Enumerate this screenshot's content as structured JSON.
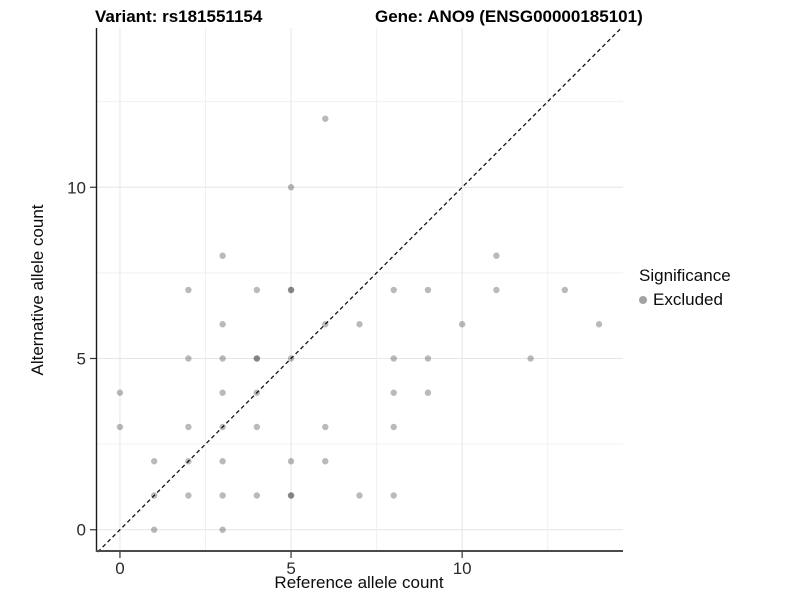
{
  "chart_data": {
    "type": "scatter",
    "title_left": "Variant: rs181551154",
    "title_right": "Gene: ANO9 (ENSG00000185101)",
    "xlabel": "Reference allele count",
    "ylabel": "Alternative allele count",
    "x_ticks": [
      0,
      5,
      10
    ],
    "y_ticks": [
      0,
      5,
      10
    ],
    "xlim": [
      -0.7,
      14.7
    ],
    "ylim": [
      -0.65,
      14.65
    ],
    "grid": {
      "major_step": 5,
      "minor_step": 2.5,
      "major_color": "#e6e6e6",
      "minor_color": "#f0f0f0"
    },
    "identity_line": {
      "style": "dashed",
      "slope": 1,
      "intercept": 0,
      "color": "#141414"
    },
    "legend": {
      "title": "Significance",
      "items": [
        {
          "label": "Excluded",
          "color": "#a2a2a2"
        }
      ],
      "position": "right"
    },
    "point_color": "rgba(0,0,0,0.27)",
    "series": [
      {
        "name": "Excluded",
        "points": [
          [
            0,
            3
          ],
          [
            0,
            4
          ],
          [
            1,
            0
          ],
          [
            1,
            1
          ],
          [
            1,
            2
          ],
          [
            2,
            1
          ],
          [
            2,
            2
          ],
          [
            2,
            3
          ],
          [
            2,
            5
          ],
          [
            2,
            7
          ],
          [
            3,
            0
          ],
          [
            3,
            1
          ],
          [
            3,
            2
          ],
          [
            3,
            3
          ],
          [
            3,
            4
          ],
          [
            3,
            5
          ],
          [
            3,
            6
          ],
          [
            3,
            8
          ],
          [
            4,
            1
          ],
          [
            4,
            3
          ],
          [
            4,
            4
          ],
          [
            4,
            5
          ],
          [
            4,
            5
          ],
          [
            4,
            7
          ],
          [
            5,
            1
          ],
          [
            5,
            1
          ],
          [
            5,
            2
          ],
          [
            5,
            5
          ],
          [
            5,
            7
          ],
          [
            5,
            7
          ],
          [
            5,
            10
          ],
          [
            6,
            2
          ],
          [
            6,
            3
          ],
          [
            6,
            6
          ],
          [
            6,
            12
          ],
          [
            7,
            1
          ],
          [
            7,
            6
          ],
          [
            8,
            1
          ],
          [
            8,
            3
          ],
          [
            8,
            4
          ],
          [
            8,
            5
          ],
          [
            8,
            7
          ],
          [
            9,
            4
          ],
          [
            9,
            5
          ],
          [
            9,
            7
          ],
          [
            10,
            6
          ],
          [
            11,
            7
          ],
          [
            11,
            8
          ],
          [
            12,
            5
          ],
          [
            13,
            7
          ],
          [
            14,
            6
          ]
        ]
      }
    ]
  }
}
